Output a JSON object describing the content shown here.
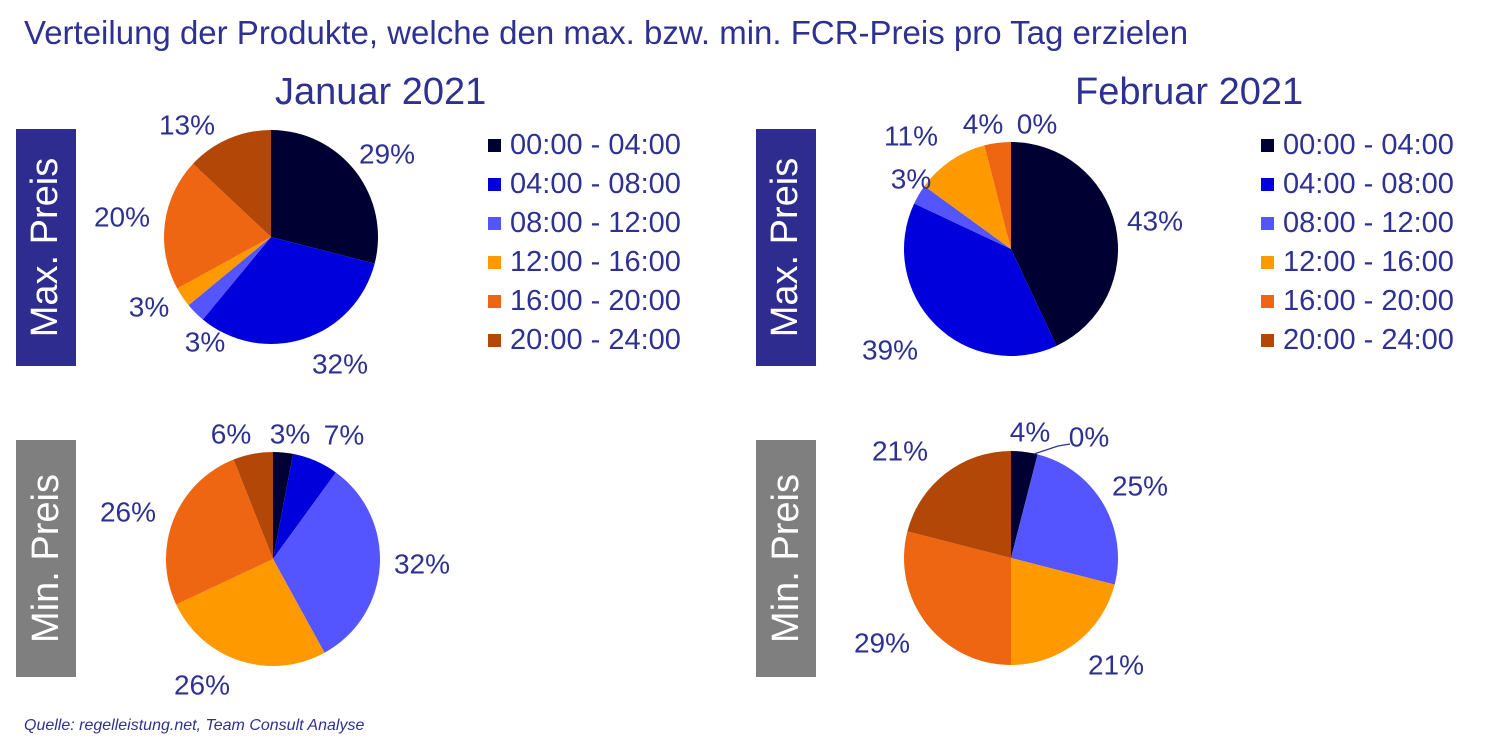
{
  "title": "Verteilung der Produkte, welche den max. bzw. min. FCR-Preis pro Tag erzielen",
  "months": [
    "Januar 2021",
    "Februar 2021"
  ],
  "row_labels": [
    "Max. Preis",
    "Min. Preis"
  ],
  "legend": [
    {
      "label": "00:00 - 04:00",
      "color": "#000033"
    },
    {
      "label": "04:00 - 08:00",
      "color": "#0000DD"
    },
    {
      "label": "08:00 - 12:00",
      "color": "#5555FF"
    },
    {
      "label": "12:00 - 16:00",
      "color": "#FF9900"
    },
    {
      "label": "16:00 - 20:00",
      "color": "#EE6611"
    },
    {
      "label": "20:00 - 24:00",
      "color": "#B34708"
    }
  ],
  "source": "Quelle: regelleistung.net, Team Consult Analyse",
  "chart_data": [
    {
      "type": "pie",
      "title": "Januar 2021",
      "row": "Max. Preis",
      "categories": [
        "00:00 - 04:00",
        "04:00 - 08:00",
        "08:00 - 12:00",
        "12:00 - 16:00",
        "16:00 - 20:00",
        "20:00 - 24:00"
      ],
      "values": [
        29,
        32,
        3,
        3,
        20,
        13
      ],
      "labels": [
        "29%",
        "32%",
        "3%",
        "3%",
        "20%",
        "13%"
      ]
    },
    {
      "type": "pie",
      "title": "Februar 2021",
      "row": "Max. Preis",
      "categories": [
        "00:00 - 04:00",
        "04:00 - 08:00",
        "08:00 - 12:00",
        "12:00 - 16:00",
        "16:00 - 20:00",
        "20:00 - 24:00"
      ],
      "values": [
        43,
        39,
        3,
        11,
        4,
        0
      ],
      "labels": [
        "43%",
        "39%",
        "3%",
        "11%",
        "4%",
        "0%"
      ]
    },
    {
      "type": "pie",
      "title": "Januar 2021",
      "row": "Min. Preis",
      "categories": [
        "00:00 - 04:00",
        "04:00 - 08:00",
        "08:00 - 12:00",
        "12:00 - 16:00",
        "16:00 - 20:00",
        "20:00 - 24:00"
      ],
      "values": [
        3,
        7,
        32,
        26,
        26,
        6
      ],
      "labels": [
        "3%",
        "7%",
        "32%",
        "26%",
        "26%",
        "6%"
      ]
    },
    {
      "type": "pie",
      "title": "Februar 2021",
      "row": "Min. Preis",
      "categories": [
        "00:00 - 04:00",
        "04:00 - 08:00",
        "08:00 - 12:00",
        "12:00 - 16:00",
        "16:00 - 20:00",
        "20:00 - 24:00"
      ],
      "values": [
        4,
        0,
        25,
        21,
        29,
        21
      ],
      "labels": [
        "4%",
        "0%",
        "25%",
        "21%",
        "29%",
        "21%"
      ]
    }
  ]
}
